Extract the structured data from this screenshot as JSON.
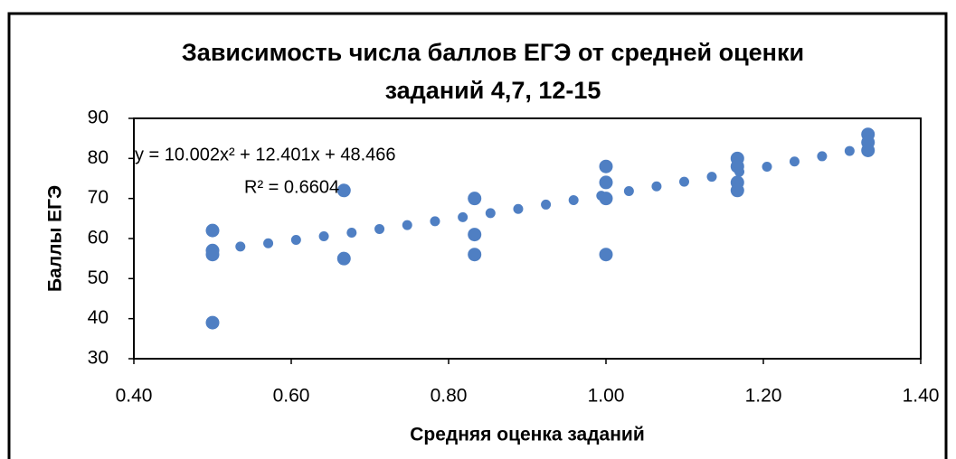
{
  "chart_data": {
    "type": "scatter",
    "title": [
      "Зависимость числа баллов ЕГЭ от средней оценки",
      "заданий 4,7, 12-15"
    ],
    "x_label": "Средняя оценка заданий",
    "y_label": "Баллы ЕГЭ",
    "color": "#4f7fc3",
    "x": [
      0.5,
      0.5,
      0.5,
      0.5,
      0.667,
      0.667,
      0.833,
      0.833,
      0.833,
      1.0,
      1.0,
      1.0,
      1.0,
      1.167,
      1.167,
      1.167,
      1.167,
      1.333,
      1.333,
      1.333
    ],
    "values": [
      62,
      57,
      56,
      39,
      72,
      55,
      70,
      61,
      56,
      78,
      74,
      70,
      56,
      80,
      78,
      74,
      72,
      86,
      84,
      82
    ],
    "trendline": {
      "x": [
        0.5,
        0.6,
        0.7,
        0.8,
        0.9,
        1.0,
        1.1,
        1.2,
        1.3,
        1.333
      ],
      "values": [
        57.17,
        59.51,
        62.05,
        64.79,
        67.73,
        70.87,
        74.21,
        77.75,
        81.49,
        82.77
      ],
      "equation": "y = 10.002x² + 12.401x + 48.466",
      "r_squared": "R² = 0.6604"
    },
    "xlim": [
      0.4,
      1.4
    ],
    "xticks": [
      {
        "value": 0.4,
        "label": "0.40"
      },
      {
        "value": 0.6,
        "label": "0.60"
      },
      {
        "value": 0.8,
        "label": "0.80"
      },
      {
        "value": 1.0,
        "label": "1.00"
      },
      {
        "value": 1.2,
        "label": "1.20"
      },
      {
        "value": 1.4,
        "label": "1.40"
      }
    ],
    "ylim": [
      30,
      90
    ],
    "yticks": [
      30,
      40,
      50,
      60,
      70,
      80,
      90
    ]
  }
}
